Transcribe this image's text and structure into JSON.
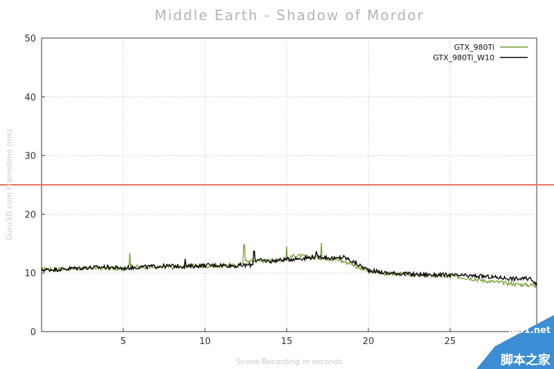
{
  "chart_data": {
    "type": "line",
    "title": "Middle Earth - Shadow of Mordor",
    "xlabel": "Scene Recording in seconds",
    "ylabel": "Guru3D.com Frametime (ms)",
    "xlim": [
      0,
      30.3
    ],
    "ylim": [
      0,
      50
    ],
    "xticks": [
      5,
      10,
      15,
      20,
      25
    ],
    "yticks": [
      0,
      10,
      20,
      30,
      40,
      50
    ],
    "grid": true,
    "legend_position": "top-right",
    "threshold": {
      "value": 25,
      "color": "#e8735a"
    },
    "series": [
      {
        "name": "GTX_980Ti",
        "color": "#6e9a2a",
        "x": [
          0,
          1,
          2,
          3,
          4,
          5,
          5.4,
          6,
          7,
          8,
          9,
          10,
          11,
          12,
          12.4,
          13,
          14,
          15,
          15.5,
          16,
          17,
          17.5,
          18,
          18.5,
          19,
          19.5,
          20,
          21,
          22,
          23,
          24,
          25,
          26,
          27,
          28,
          29,
          30,
          30.3
        ],
        "y": [
          10.7,
          10.6,
          10.7,
          10.8,
          10.8,
          10.7,
          11.2,
          11.0,
          11.0,
          10.9,
          11.2,
          11.1,
          11.3,
          11.2,
          12.0,
          12.0,
          12.1,
          12.3,
          13.0,
          12.8,
          12.6,
          12.5,
          12.3,
          11.9,
          11.6,
          10.7,
          10.3,
          9.9,
          9.8,
          9.6,
          9.5,
          9.4,
          9.2,
          8.7,
          8.4,
          8.1,
          7.9,
          7.8
        ],
        "spikes": [
          [
            5.4,
            13.4
          ],
          [
            12.4,
            14.8
          ],
          [
            15.0,
            14.5
          ],
          [
            17.1,
            15.1
          ],
          [
            18.3,
            13.1
          ]
        ]
      },
      {
        "name": "GTX_980Ti_W10",
        "color": "#000000",
        "x": [
          0,
          1,
          2,
          3,
          4,
          5,
          6,
          7,
          8,
          9,
          10,
          11,
          12,
          12.9,
          13,
          14,
          15,
          16,
          17,
          18,
          18.5,
          19,
          19.5,
          20,
          21,
          22,
          23,
          24,
          25,
          26,
          27,
          28,
          29,
          30,
          30.3
        ],
        "y": [
          10.5,
          10.6,
          10.8,
          10.9,
          11.0,
          10.8,
          11.0,
          11.1,
          11.2,
          11.1,
          11.3,
          11.3,
          11.2,
          11.4,
          12.2,
          12.0,
          12.3,
          12.5,
          12.8,
          12.4,
          12.7,
          12.0,
          11.2,
          10.5,
          10.0,
          9.9,
          9.7,
          9.7,
          9.6,
          9.5,
          9.4,
          9.2,
          9.0,
          9.0,
          8.0
        ],
        "spikes": [
          [
            8.8,
            12.4
          ],
          [
            13.0,
            13.7
          ],
          [
            16.8,
            13.7
          ]
        ]
      }
    ]
  },
  "watermark": {
    "url": "jb51.net",
    "name": "脚本之家"
  }
}
